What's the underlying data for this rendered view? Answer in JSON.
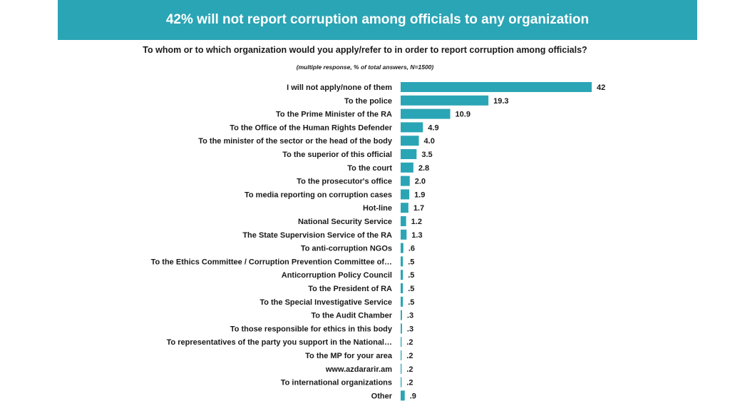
{
  "header": {
    "title": "42% will not report corruption among officials to any organization"
  },
  "chart_data": {
    "type": "bar",
    "orientation": "horizontal",
    "title": "To whom or to which organization would you apply/refer to in order to report corruption among officials?",
    "subtitle": "(multiple response, % of total answers, N=1500)",
    "bar_color": "#2aa5b5",
    "categories": [
      "I will not apply/none of them",
      "To the police",
      "To the Prime Minister of the RA",
      "To the Office of the Human Rights Defender",
      "To the minister of the sector or the head of the body",
      "To the superior of this official",
      "To the court",
      "To the prosecutor's office",
      "To media reporting on corruption cases",
      "Hot-line",
      "National Security Service",
      "The State Supervision Service of the RA",
      "To anti-corruption NGOs",
      "To the Ethics Committee / Corruption Prevention Committee of…",
      "Anticorruption Policy Council",
      "To the President of RA",
      "To the Special Investigative Service",
      "To the Audit Chamber",
      "To those responsible for ethics in this body",
      "To representatives of the party you support in the National…",
      "To the MP for your area",
      "www.azdararir.am",
      "To international organizations",
      "Other"
    ],
    "values": [
      42,
      19.3,
      10.9,
      4.9,
      4.0,
      3.5,
      2.8,
      2.0,
      1.9,
      1.7,
      1.2,
      1.3,
      0.6,
      0.5,
      0.5,
      0.5,
      0.5,
      0.3,
      0.3,
      0.2,
      0.2,
      0.2,
      0.2,
      0.9
    ],
    "value_labels": [
      "42",
      "19.3",
      "10.9",
      "4.9",
      "4.0",
      "3.5",
      "2.8",
      "2.0",
      "1.9",
      "1.7",
      "1.2",
      "1.3",
      ".6",
      ".5",
      ".5",
      ".5",
      ".5",
      ".3",
      ".3",
      ".2",
      ".2",
      ".2",
      ".2",
      ".9"
    ],
    "xlim": [
      0,
      42
    ],
    "grid": false,
    "legend": false
  }
}
